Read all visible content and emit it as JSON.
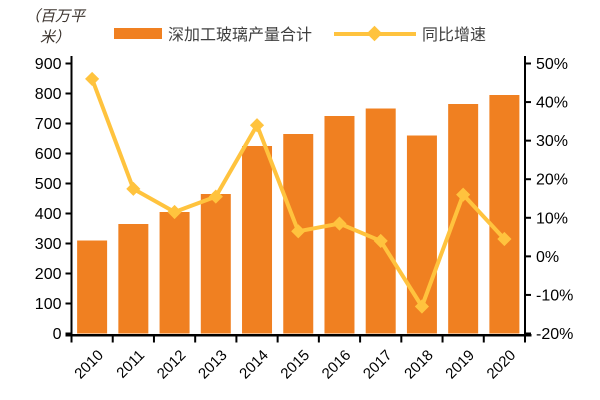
{
  "figure": {
    "background": "#ffffff"
  },
  "colors": {
    "bar": "#F08021",
    "line": "#FFC33E",
    "axis": "#000000",
    "tick_text": "#000000",
    "legend_text": "#3F3F3F",
    "unit_text": "#3A322C"
  },
  "chart_data": {
    "type": "combo",
    "title": "",
    "categories": [
      "2010",
      "2011",
      "2012",
      "2013",
      "2014",
      "2015",
      "2016",
      "2017",
      "2018",
      "2019",
      "2020"
    ],
    "series": [
      {
        "name": "深加工玻璃产量合计",
        "type": "bar",
        "axis": "left",
        "color": "#F08021",
        "values": [
          310,
          365,
          405,
          465,
          625,
          665,
          725,
          750,
          660,
          765,
          795
        ]
      },
      {
        "name": "同比增速",
        "type": "line",
        "axis": "right",
        "color": "#FFC33E",
        "values": [
          46,
          17.5,
          11.5,
          15.5,
          34,
          6.5,
          8.5,
          4,
          -13,
          16,
          4.5
        ]
      }
    ],
    "y_left": {
      "unit": "（百万平米）",
      "min": 0,
      "max": 900,
      "tick_step": 100,
      "tick_labels": [
        "900",
        "800",
        "700",
        "600",
        "500",
        "400",
        "300",
        "200",
        "100",
        "0"
      ]
    },
    "y_right": {
      "min": -20,
      "max": 50,
      "tick_step": 10,
      "tick_labels": [
        "50%",
        "40%",
        "30%",
        "20%",
        "10%",
        "0%",
        "-10%",
        "-20%"
      ]
    },
    "grid": false,
    "legend_position": "top-center",
    "x_label_rotation": -45
  }
}
